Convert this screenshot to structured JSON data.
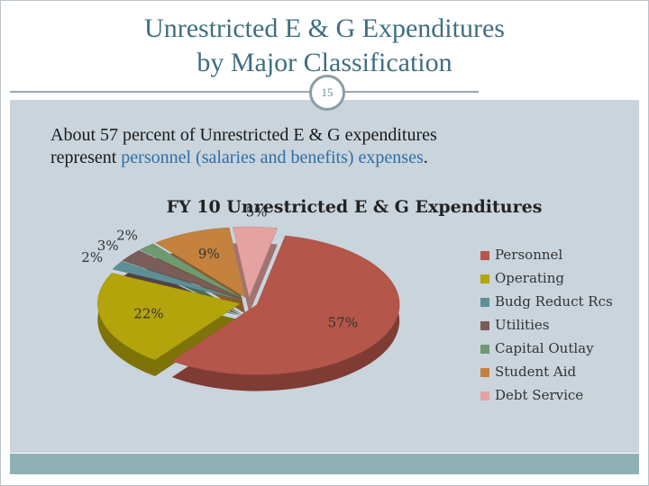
{
  "slide": {
    "title_lines": [
      "Unrestricted E & G Expenditures",
      "by Major Classification"
    ],
    "page_number": "15",
    "body": [
      "About 57 percent of Unrestricted E & G expenditures",
      "represent ",
      "personnel (salaries and benefits) expenses",
      "."
    ]
  },
  "chart_data": {
    "type": "pie",
    "title": "FY 10 Unrestricted E & G Expenditures",
    "categories": [
      "Personnel",
      "Operating",
      "Budg Reduct Rcs",
      "Utilities",
      "Capital Outlay",
      "Student Aid",
      "Debt Service"
    ],
    "values": [
      57,
      22,
      2,
      3,
      2,
      9,
      5
    ],
    "value_labels": [
      "57%",
      "22%",
      "2%",
      "3%",
      "2%",
      "9%",
      "5%"
    ],
    "colors": [
      "#b5564a",
      "#b3a40c",
      "#5e8f96",
      "#7a5d58",
      "#6e9a72",
      "#c4823e",
      "#e4a3a0"
    ],
    "legend": "right"
  }
}
